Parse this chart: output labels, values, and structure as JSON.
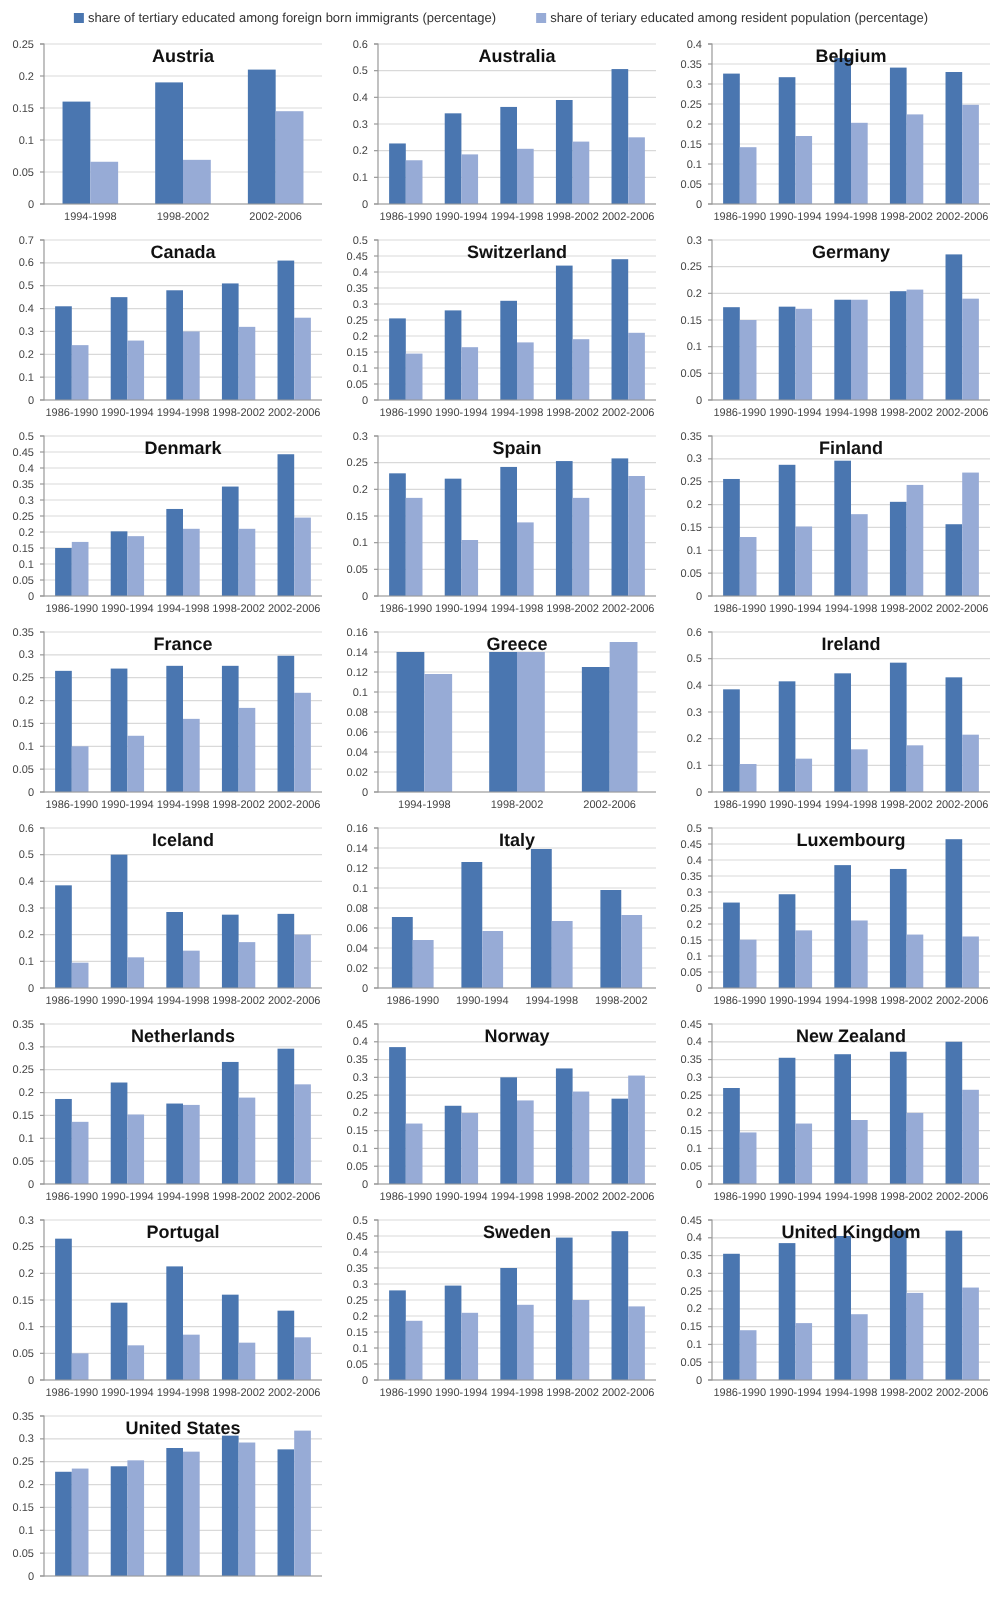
{
  "chart_data": [
    {
      "type": "bar",
      "title": "Austria",
      "categories": [
        "1994-1998",
        "1998-2002",
        "2002-2006"
      ],
      "legend": "top",
      "grid": "y",
      "ylim": [
        0,
        0.25
      ],
      "yticks": [
        0,
        0.05,
        0.1,
        0.15,
        0.2,
        0.25
      ],
      "series": [
        {
          "name": "share of tertiary educated among foreign born immigrants (percentage)",
          "color": "#4a76b0",
          "values": [
            0.16,
            0.19,
            0.21
          ]
        },
        {
          "name": "share of teriary educated among resident population (percentage)",
          "color": "#97abd6",
          "values": [
            0.066,
            0.069,
            0.145
          ]
        }
      ]
    },
    {
      "type": "bar",
      "title": "Australia",
      "categories": [
        "1986-1990",
        "1990-1994",
        "1994-1998",
        "1998-2002",
        "2002-2006"
      ],
      "grid": "y",
      "ylim": [
        0,
        0.6
      ],
      "yticks": [
        0,
        0.1,
        0.2,
        0.3,
        0.4,
        0.5,
        0.6
      ],
      "series": [
        {
          "color": "#4a76b0",
          "values": [
            0.227,
            0.34,
            0.364,
            0.39,
            0.506
          ]
        },
        {
          "color": "#97abd6",
          "values": [
            0.164,
            0.186,
            0.207,
            0.234,
            0.25
          ]
        }
      ]
    },
    {
      "type": "bar",
      "title": "Belgium",
      "categories": [
        "1986-1990",
        "1990-1994",
        "1994-1998",
        "1998-2002",
        "2002-2006"
      ],
      "grid": "y",
      "ylim": [
        0,
        0.4
      ],
      "yticks": [
        0,
        0.05,
        0.1,
        0.15,
        0.2,
        0.25,
        0.3,
        0.35,
        0.4
      ],
      "series": [
        {
          "color": "#4a76b0",
          "values": [
            0.326,
            0.317,
            0.365,
            0.341,
            0.33
          ]
        },
        {
          "color": "#97abd6",
          "values": [
            0.142,
            0.17,
            0.203,
            0.224,
            0.248
          ]
        }
      ]
    },
    {
      "type": "bar",
      "title": "Canada",
      "categories": [
        "1986-1990",
        "1990-1994",
        "1994-1998",
        "1998-2002",
        "2002-2006"
      ],
      "grid": "y",
      "ylim": [
        0,
        0.7
      ],
      "yticks": [
        0,
        0.1,
        0.2,
        0.3,
        0.4,
        0.5,
        0.6,
        0.7
      ],
      "series": [
        {
          "color": "#4a76b0",
          "values": [
            0.41,
            0.45,
            0.48,
            0.51,
            0.61
          ]
        },
        {
          "color": "#97abd6",
          "values": [
            0.24,
            0.26,
            0.3,
            0.32,
            0.36
          ]
        }
      ]
    },
    {
      "type": "bar",
      "title": "Switzerland",
      "categories": [
        "1986-1990",
        "1990-1994",
        "1994-1998",
        "1998-2002",
        "2002-2006"
      ],
      "grid": "y",
      "ylim": [
        0,
        0.5
      ],
      "yticks": [
        0,
        0.05,
        0.1,
        0.15,
        0.2,
        0.25,
        0.3,
        0.35,
        0.4,
        0.45,
        0.5
      ],
      "series": [
        {
          "color": "#4a76b0",
          "values": [
            0.255,
            0.28,
            0.31,
            0.42,
            0.44
          ]
        },
        {
          "color": "#97abd6",
          "values": [
            0.145,
            0.165,
            0.18,
            0.19,
            0.21
          ]
        }
      ]
    },
    {
      "type": "bar",
      "title": "Germany",
      "categories": [
        "1986-1990",
        "1990-1994",
        "1994-1998",
        "1998-2002",
        "2002-2006"
      ],
      "grid": "y",
      "ylim": [
        0,
        0.3
      ],
      "yticks": [
        0,
        0.05,
        0.1,
        0.15,
        0.2,
        0.25,
        0.3
      ],
      "series": [
        {
          "color": "#4a76b0",
          "values": [
            0.174,
            0.175,
            0.188,
            0.204,
            0.273
          ]
        },
        {
          "color": "#97abd6",
          "values": [
            0.15,
            0.171,
            0.188,
            0.207,
            0.19
          ]
        }
      ]
    },
    {
      "type": "bar",
      "title": "Denmark",
      "categories": [
        "1986-1990",
        "1990-1994",
        "1994-1998",
        "1998-2002",
        "2002-2006"
      ],
      "grid": "y",
      "ylim": [
        0,
        0.5
      ],
      "yticks": [
        0,
        0.05,
        0.1,
        0.15,
        0.2,
        0.25,
        0.3,
        0.35,
        0.4,
        0.45,
        0.5
      ],
      "series": [
        {
          "color": "#4a76b0",
          "values": [
            0.15,
            0.202,
            0.272,
            0.342,
            0.443
          ]
        },
        {
          "color": "#97abd6",
          "values": [
            0.169,
            0.187,
            0.21,
            0.21,
            0.245
          ]
        }
      ]
    },
    {
      "type": "bar",
      "title": "Spain",
      "categories": [
        "1986-1990",
        "1990-1994",
        "1994-1998",
        "1998-2002",
        "2002-2006"
      ],
      "grid": "y",
      "ylim": [
        0,
        0.3
      ],
      "yticks": [
        0,
        0.05,
        0.1,
        0.15,
        0.2,
        0.25,
        0.3
      ],
      "series": [
        {
          "color": "#4a76b0",
          "values": [
            0.23,
            0.22,
            0.242,
            0.253,
            0.258
          ]
        },
        {
          "color": "#97abd6",
          "values": [
            0.184,
            0.105,
            0.138,
            0.184,
            0.225
          ]
        }
      ]
    },
    {
      "type": "bar",
      "title": "Finland",
      "categories": [
        "1986-1990",
        "1990-1994",
        "1994-1998",
        "1998-2002",
        "2002-2006"
      ],
      "grid": "y",
      "ylim": [
        0,
        0.35
      ],
      "yticks": [
        0,
        0.05,
        0.1,
        0.15,
        0.2,
        0.25,
        0.3,
        0.35
      ],
      "series": [
        {
          "color": "#4a76b0",
          "values": [
            0.256,
            0.287,
            0.296,
            0.206,
            0.157
          ]
        },
        {
          "color": "#97abd6",
          "values": [
            0.129,
            0.152,
            0.179,
            0.243,
            0.27
          ]
        }
      ]
    },
    {
      "type": "bar",
      "title": "France",
      "categories": [
        "1986-1990",
        "1990-1994",
        "1994-1998",
        "1998-2002",
        "2002-2006"
      ],
      "grid": "y",
      "ylim": [
        0,
        0.35
      ],
      "yticks": [
        0,
        0.05,
        0.1,
        0.15,
        0.2,
        0.25,
        0.3,
        0.35
      ],
      "series": [
        {
          "color": "#4a76b0",
          "values": [
            0.265,
            0.27,
            0.276,
            0.276,
            0.298
          ]
        },
        {
          "color": "#97abd6",
          "values": [
            0.1,
            0.123,
            0.16,
            0.184,
            0.217
          ]
        }
      ]
    },
    {
      "type": "bar",
      "title": "Greece",
      "categories": [
        "1994-1998",
        "1998-2002",
        "2002-2006"
      ],
      "grid": "y",
      "ylim": [
        0,
        0.16
      ],
      "yticks": [
        0,
        0.02,
        0.04,
        0.06,
        0.08,
        0.1,
        0.12,
        0.14,
        0.16
      ],
      "series": [
        {
          "color": "#4a76b0",
          "values": [
            0.14,
            0.14,
            0.125
          ]
        },
        {
          "color": "#97abd6",
          "values": [
            0.118,
            0.14,
            0.15
          ]
        }
      ]
    },
    {
      "type": "bar",
      "title": "Ireland",
      "categories": [
        "1986-1990",
        "1990-1994",
        "1994-1998",
        "1998-2002",
        "2002-2006"
      ],
      "grid": "y",
      "ylim": [
        0,
        0.6
      ],
      "yticks": [
        0,
        0.1,
        0.2,
        0.3,
        0.4,
        0.5,
        0.6
      ],
      "series": [
        {
          "color": "#4a76b0",
          "values": [
            0.385,
            0.415,
            0.445,
            0.485,
            0.43
          ]
        },
        {
          "color": "#97abd6",
          "values": [
            0.105,
            0.125,
            0.16,
            0.175,
            0.215
          ]
        }
      ]
    },
    {
      "type": "bar",
      "title": "Iceland",
      "categories": [
        "1986-1990",
        "1990-1994",
        "1994-1998",
        "1998-2002",
        "2002-2006"
      ],
      "grid": "y",
      "ylim": [
        0,
        0.6
      ],
      "yticks": [
        0,
        0.1,
        0.2,
        0.3,
        0.4,
        0.5,
        0.6
      ],
      "series": [
        {
          "color": "#4a76b0",
          "values": [
            0.385,
            0.5,
            0.285,
            0.275,
            0.278
          ]
        },
        {
          "color": "#97abd6",
          "values": [
            0.095,
            0.115,
            0.14,
            0.172,
            0.2
          ]
        }
      ]
    },
    {
      "type": "bar",
      "title": "Italy",
      "categories": [
        "1986-1990",
        "1990-1994",
        "1994-1998",
        "1998-2002"
      ],
      "grid": "y",
      "ylim": [
        0,
        0.16
      ],
      "yticks": [
        0,
        0.02,
        0.04,
        0.06,
        0.08,
        0.1,
        0.12,
        0.14,
        0.16
      ],
      "series": [
        {
          "color": "#4a76b0",
          "values": [
            0.071,
            0.126,
            0.139,
            0.098
          ]
        },
        {
          "color": "#97abd6",
          "values": [
            0.048,
            0.057,
            0.067,
            0.073
          ]
        }
      ]
    },
    {
      "type": "bar",
      "title": "Luxembourg",
      "categories": [
        "1986-1990",
        "1990-1994",
        "1994-1998",
        "1998-2002",
        "2002-2006"
      ],
      "grid": "y",
      "ylim": [
        0,
        0.5
      ],
      "yticks": [
        0,
        0.05,
        0.1,
        0.15,
        0.2,
        0.25,
        0.3,
        0.35,
        0.4,
        0.45,
        0.5
      ],
      "series": [
        {
          "color": "#4a76b0",
          "values": [
            0.267,
            0.293,
            0.384,
            0.372,
            0.465
          ]
        },
        {
          "color": "#97abd6",
          "values": [
            0.151,
            0.18,
            0.211,
            0.167,
            0.161
          ]
        }
      ]
    },
    {
      "type": "bar",
      "title": "Netherlands",
      "categories": [
        "1986-1990",
        "1990-1994",
        "1994-1998",
        "1998-2002",
        "2002-2006"
      ],
      "grid": "y",
      "ylim": [
        0,
        0.35
      ],
      "yticks": [
        0,
        0.05,
        0.1,
        0.15,
        0.2,
        0.25,
        0.3,
        0.35
      ],
      "series": [
        {
          "color": "#4a76b0",
          "values": [
            0.186,
            0.222,
            0.176,
            0.267,
            0.296
          ]
        },
        {
          "color": "#97abd6",
          "values": [
            0.136,
            0.152,
            0.173,
            0.189,
            0.218
          ]
        }
      ]
    },
    {
      "type": "bar",
      "title": "Norway",
      "categories": [
        "1986-1990",
        "1990-1994",
        "1994-1998",
        "1998-2002",
        "2002-2006"
      ],
      "grid": "y",
      "ylim": [
        0,
        0.45
      ],
      "yticks": [
        0,
        0.05,
        0.1,
        0.15,
        0.2,
        0.25,
        0.3,
        0.35,
        0.4,
        0.45
      ],
      "series": [
        {
          "color": "#4a76b0",
          "values": [
            0.385,
            0.22,
            0.3,
            0.325,
            0.24
          ]
        },
        {
          "color": "#97abd6",
          "values": [
            0.17,
            0.2,
            0.235,
            0.26,
            0.305
          ]
        }
      ]
    },
    {
      "type": "bar",
      "title": "New Zealand",
      "categories": [
        "1986-1990",
        "1990-1994",
        "1994-1998",
        "1998-2002",
        "2002-2006"
      ],
      "grid": "y",
      "ylim": [
        0,
        0.45
      ],
      "yticks": [
        0,
        0.05,
        0.1,
        0.15,
        0.2,
        0.25,
        0.3,
        0.35,
        0.4,
        0.45
      ],
      "series": [
        {
          "color": "#4a76b0",
          "values": [
            0.27,
            0.355,
            0.365,
            0.372,
            0.4
          ]
        },
        {
          "color": "#97abd6",
          "values": [
            0.145,
            0.17,
            0.18,
            0.2,
            0.265
          ]
        }
      ]
    },
    {
      "type": "bar",
      "title": "Portugal",
      "categories": [
        "1986-1990",
        "1990-1994",
        "1994-1998",
        "1998-2002",
        "2002-2006"
      ],
      "grid": "y",
      "ylim": [
        0,
        0.3
      ],
      "yticks": [
        0,
        0.05,
        0.1,
        0.15,
        0.2,
        0.25,
        0.3
      ],
      "series": [
        {
          "color": "#4a76b0",
          "values": [
            0.265,
            0.145,
            0.213,
            0.16,
            0.13
          ]
        },
        {
          "color": "#97abd6",
          "values": [
            0.05,
            0.065,
            0.085,
            0.07,
            0.08
          ]
        }
      ]
    },
    {
      "type": "bar",
      "title": "Sweden",
      "categories": [
        "1986-1990",
        "1990-1994",
        "1994-1998",
        "1998-2002",
        "2002-2006"
      ],
      "grid": "y",
      "ylim": [
        0,
        0.5
      ],
      "yticks": [
        0,
        0.05,
        0.1,
        0.15,
        0.2,
        0.25,
        0.3,
        0.35,
        0.4,
        0.45,
        0.5
      ],
      "series": [
        {
          "color": "#4a76b0",
          "values": [
            0.28,
            0.295,
            0.35,
            0.445,
            0.465
          ]
        },
        {
          "color": "#97abd6",
          "values": [
            0.185,
            0.21,
            0.235,
            0.25,
            0.23
          ]
        }
      ]
    },
    {
      "type": "bar",
      "title": "United Kingdom",
      "categories": [
        "1986-1990",
        "1990-1994",
        "1994-1998",
        "1998-2002",
        "2002-2006"
      ],
      "grid": "y",
      "ylim": [
        0,
        0.45
      ],
      "yticks": [
        0,
        0.05,
        0.1,
        0.15,
        0.2,
        0.25,
        0.3,
        0.35,
        0.4,
        0.45
      ],
      "series": [
        {
          "color": "#4a76b0",
          "values": [
            0.355,
            0.385,
            0.405,
            0.42,
            0.42
          ]
        },
        {
          "color": "#97abd6",
          "values": [
            0.14,
            0.16,
            0.185,
            0.245,
            0.26
          ]
        }
      ]
    },
    {
      "type": "bar",
      "title": "United States",
      "categories": [
        null,
        null,
        null,
        null,
        null
      ],
      "grid": "y",
      "ylim": [
        0,
        0.35
      ],
      "yticks": [
        0,
        0.05,
        0.1,
        0.15,
        0.2,
        0.25,
        0.3,
        0.35
      ],
      "series": [
        {
          "color": "#4a76b0",
          "values": [
            0.228,
            0.24,
            0.28,
            0.307,
            0.277
          ]
        },
        {
          "color": "#97abd6",
          "values": [
            0.235,
            0.253,
            0.272,
            0.292,
            0.318
          ]
        }
      ]
    }
  ]
}
